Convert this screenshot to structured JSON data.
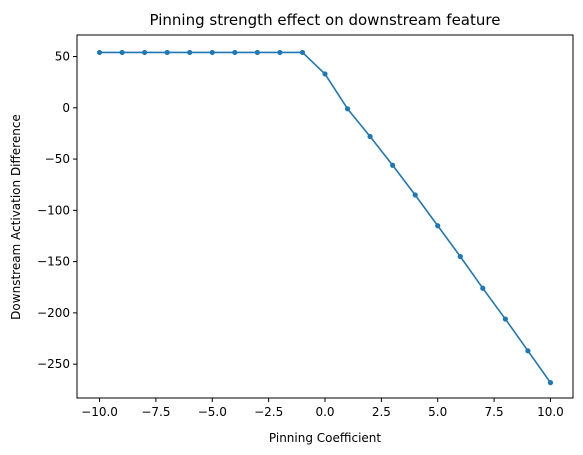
{
  "chart_data": {
    "type": "line",
    "title": "Pinning strength effect on downstream feature",
    "xlabel": "Pinning Coefficient",
    "ylabel": "Downstream Activation Difference",
    "xlim": [
      -11,
      11
    ],
    "ylim": [
      -283,
      71
    ],
    "xticks": [
      -10.0,
      -7.5,
      -5.0,
      -2.5,
      0.0,
      2.5,
      5.0,
      7.5,
      10.0
    ],
    "xtick_labels": [
      "−10.0",
      "−7.5",
      "−5.0",
      "−2.5",
      "0.0",
      "2.5",
      "5.0",
      "7.5",
      "10.0"
    ],
    "yticks": [
      50,
      0,
      -50,
      -100,
      -150,
      -200,
      -250
    ],
    "ytick_labels": [
      "50",
      "0",
      "−50",
      "−100",
      "−150",
      "−200",
      "−250"
    ],
    "grid": false,
    "legend": null,
    "series": [
      {
        "color": "#1f77b4",
        "marker": "circle",
        "x": [
          -10,
          -9,
          -8,
          -7,
          -6,
          -5,
          -4,
          -3,
          -2,
          -1,
          0,
          1,
          2,
          3,
          4,
          5,
          6,
          7,
          8,
          9,
          10
        ],
        "y": [
          54,
          54,
          54,
          54,
          54,
          54,
          54,
          54,
          54,
          54,
          33,
          -1,
          -28,
          -56,
          -85,
          -115,
          -145,
          -176,
          -206,
          -237,
          -268
        ]
      }
    ]
  }
}
